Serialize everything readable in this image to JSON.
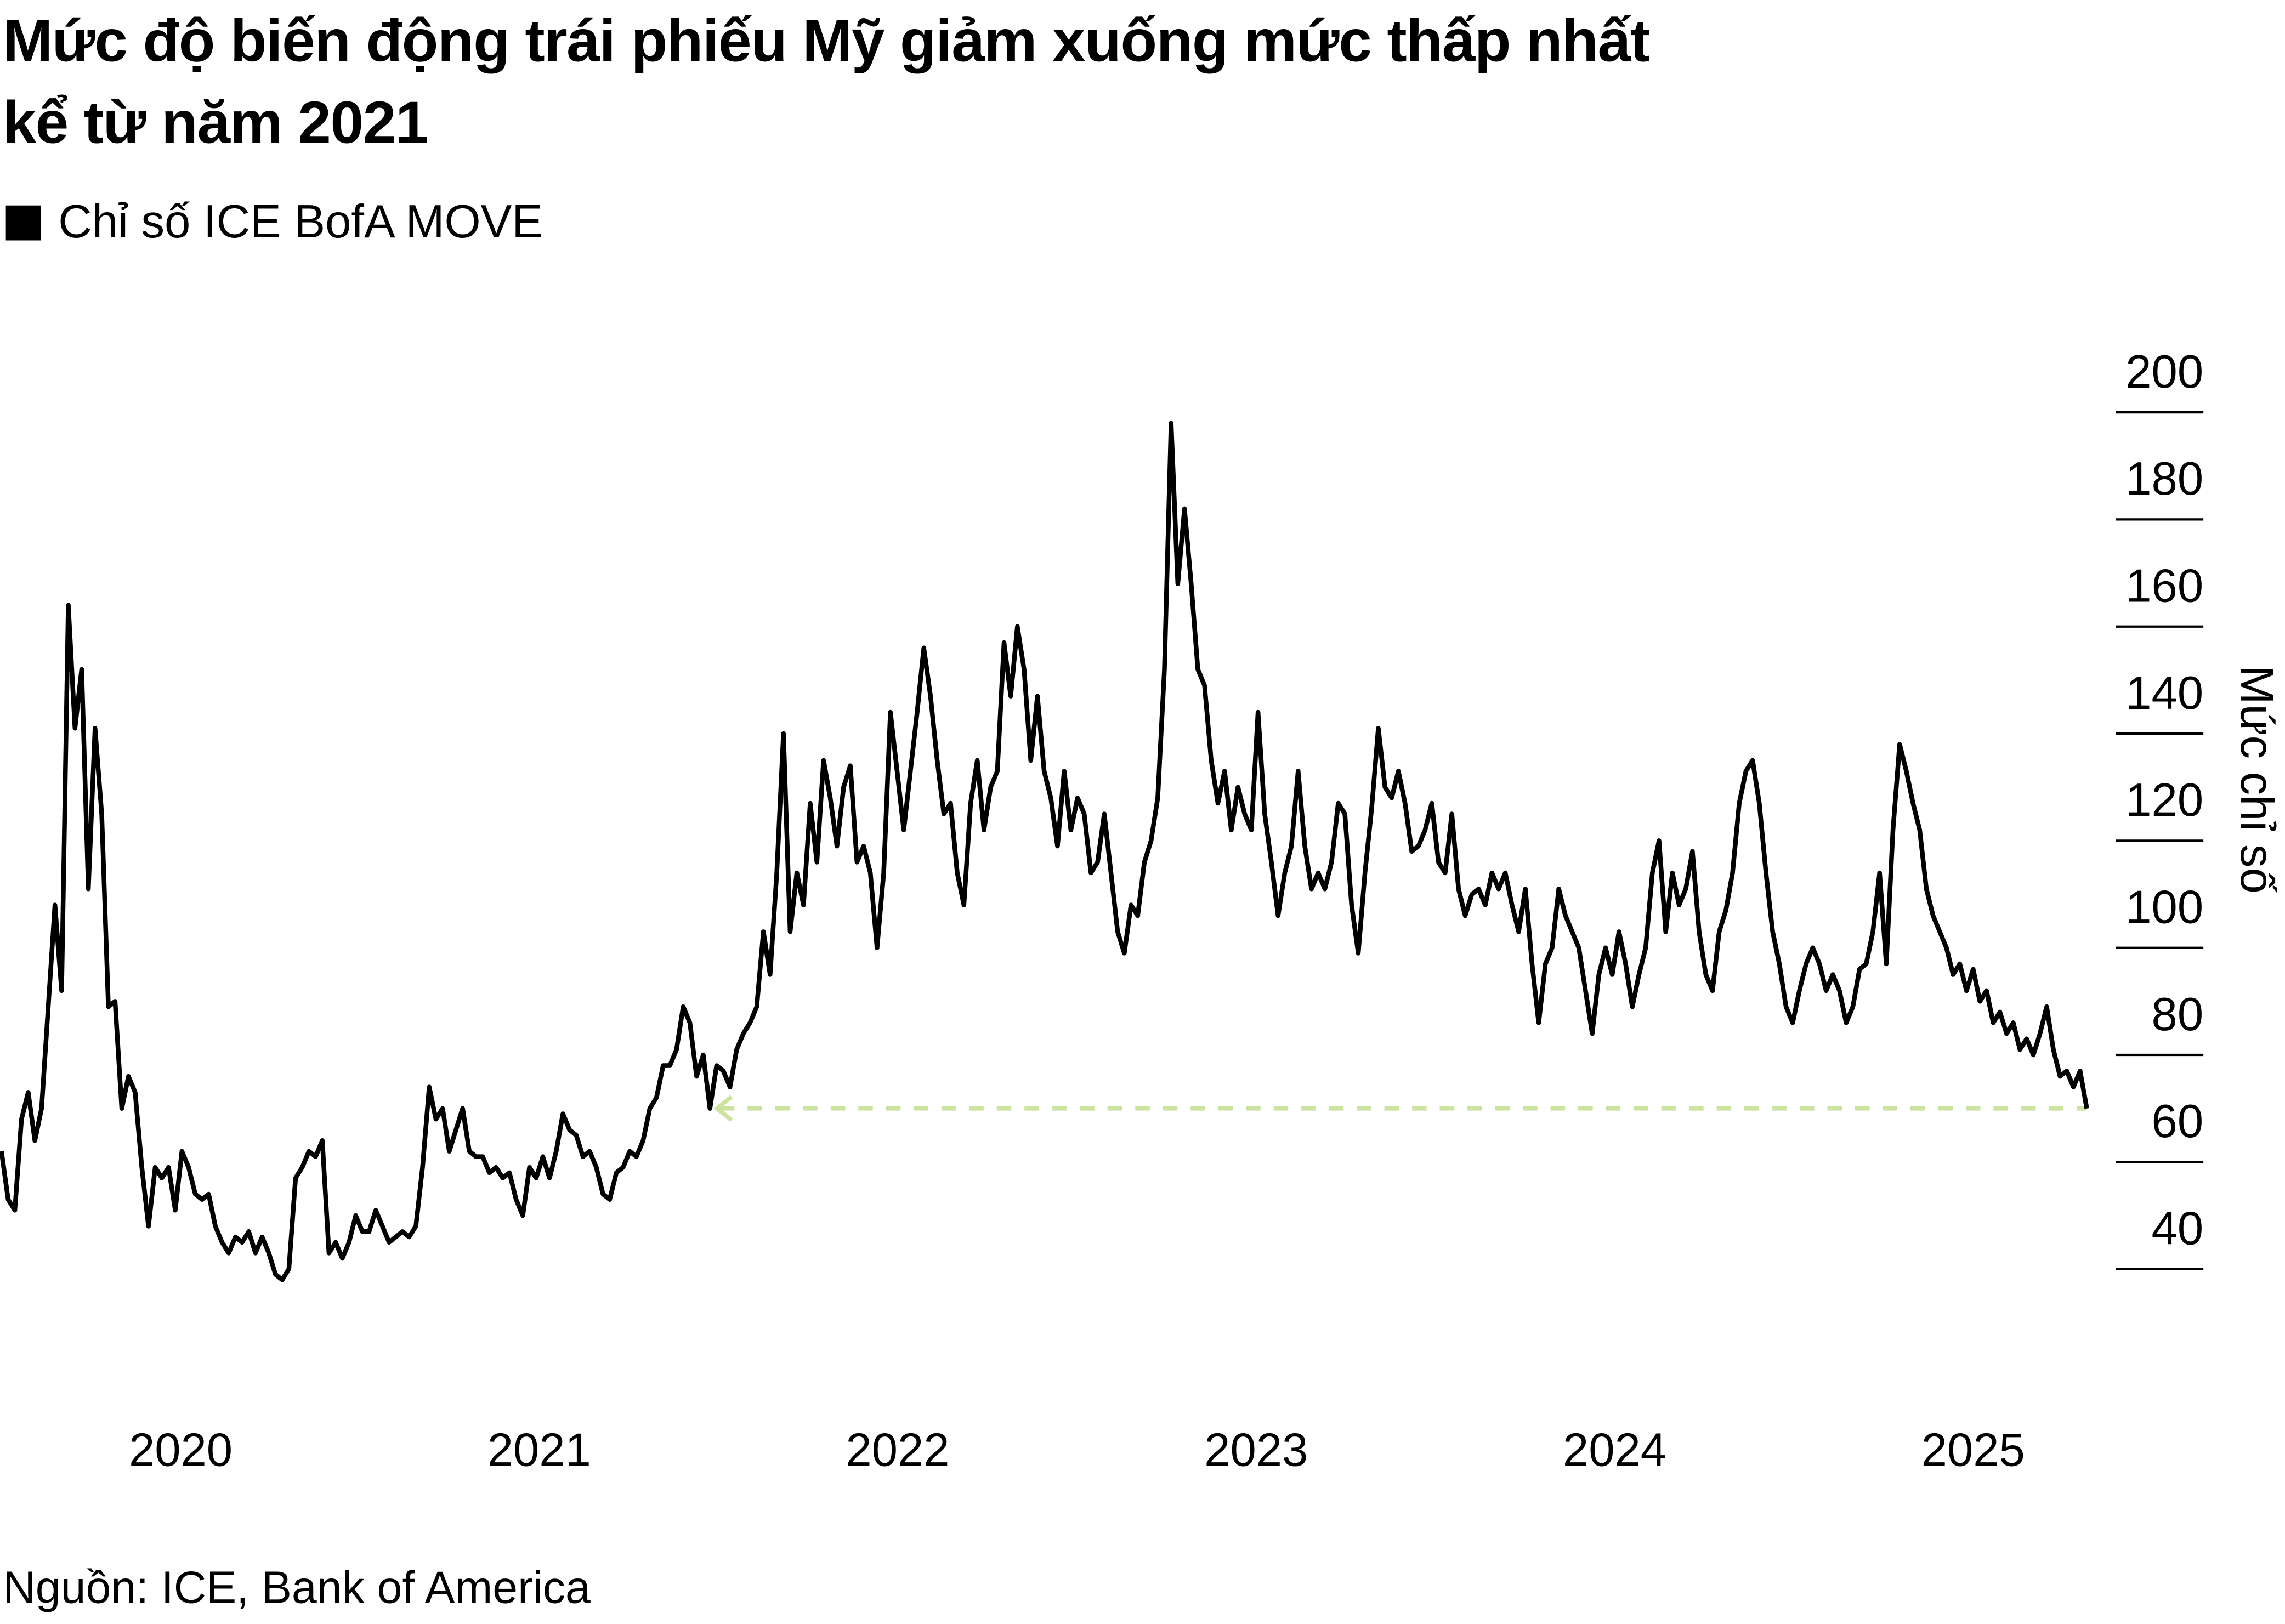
{
  "chart_data": {
    "type": "line",
    "title": "Mức độ biến động trái phiếu Mỹ giảm xuống mức thấp nhất kể từ năm 2021",
    "legend": [
      {
        "label": "Chỉ số ICE BofA MOVE",
        "color": "#000000"
      }
    ],
    "legend_placement": "top-left",
    "ylabel": "Mức chỉ số",
    "xlabel": "",
    "ylim": [
      40,
      200
    ],
    "yticks": [
      "200",
      "180",
      "160",
      "140",
      "120",
      "100",
      "80",
      "60",
      "40"
    ],
    "ytick_values": [
      200,
      180,
      160,
      140,
      120,
      100,
      80,
      60,
      40
    ],
    "xticks": [
      "2020",
      "2021",
      "2022",
      "2023",
      "2024",
      "2025"
    ],
    "x_range": [
      "2020-01",
      "2025-10"
    ],
    "grid": false,
    "reference_line": {
      "value": 70,
      "color": "#cde3a0",
      "style": "dashed-arrow",
      "from": "2021-12"
    },
    "series": [
      {
        "name": "Chỉ số ICE BofA MOVE",
        "color": "#000000",
        "values": [
          62,
          53,
          51,
          68,
          73,
          64,
          70,
          89,
          108,
          92,
          164,
          141,
          152,
          111,
          141,
          125,
          89,
          90,
          70,
          76,
          73,
          59,
          48,
          59,
          57,
          59,
          51,
          62,
          59,
          54,
          53,
          54,
          48,
          45,
          43,
          46,
          45,
          47,
          43,
          46,
          43,
          39,
          38,
          40,
          57,
          59,
          62,
          61,
          64,
          43,
          45,
          42,
          45,
          50,
          47,
          47,
          51,
          48,
          45,
          46,
          47,
          46,
          48,
          59,
          74,
          68,
          70,
          62,
          66,
          70,
          62,
          61,
          61,
          58,
          59,
          57,
          58,
          53,
          50,
          59,
          57,
          61,
          57,
          62,
          69,
          66,
          65,
          61,
          62,
          59,
          54,
          53,
          58,
          59,
          62,
          61,
          64,
          70,
          72,
          78,
          78,
          81,
          89,
          86,
          76,
          80,
          70,
          78,
          77,
          74,
          81,
          84,
          86,
          89,
          103,
          95,
          114,
          140,
          103,
          114,
          108,
          127,
          116,
          135,
          128,
          119,
          130,
          134,
          116,
          119,
          114,
          100,
          114,
          144,
          133,
          122,
          133,
          144,
          156,
          147,
          135,
          125,
          127,
          114,
          108,
          127,
          135,
          122,
          130,
          133,
          157,
          147,
          160,
          152,
          135,
          147,
          133,
          128,
          119,
          133,
          122,
          128,
          125,
          114,
          116,
          125,
          114,
          103,
          99,
          108,
          106,
          116,
          120,
          128,
          152,
          198,
          168,
          182,
          168,
          152,
          149,
          135,
          127,
          133,
          122,
          130,
          125,
          122,
          144,
          125,
          116,
          106,
          114,
          119,
          133,
          119,
          111,
          114,
          111,
          116,
          127,
          125,
          108,
          99,
          114,
          126,
          141,
          130,
          128,
          133,
          127,
          118,
          119,
          122,
          127,
          116,
          114,
          125,
          111,
          106,
          110,
          111,
          108,
          114,
          111,
          114,
          108,
          103,
          111,
          97,
          86,
          97,
          100,
          111,
          106,
          103,
          100,
          92,
          84,
          95,
          100,
          95,
          103,
          97,
          89,
          95,
          100,
          114,
          120,
          103,
          114,
          108,
          111,
          118,
          103,
          95,
          92,
          103,
          107,
          114,
          127,
          133,
          135,
          127,
          114,
          103,
          97,
          89,
          86,
          92,
          97,
          100,
          97,
          92,
          95,
          92,
          86,
          89,
          96,
          97,
          103,
          114,
          97,
          122,
          138,
          133,
          127,
          122,
          111,
          106,
          103,
          100,
          95,
          97,
          92,
          96,
          90,
          92,
          86,
          88,
          84,
          86,
          81,
          83,
          80,
          84,
          89,
          81,
          76,
          77,
          74,
          77,
          70
        ]
      }
    ]
  },
  "title_line1": "Mức độ biến động trái phiếu Mỹ giảm xuống mức thấp nhất",
  "title_line2": "kể từ năm 2021",
  "source": "Nguồn: ICE, Bank of America"
}
